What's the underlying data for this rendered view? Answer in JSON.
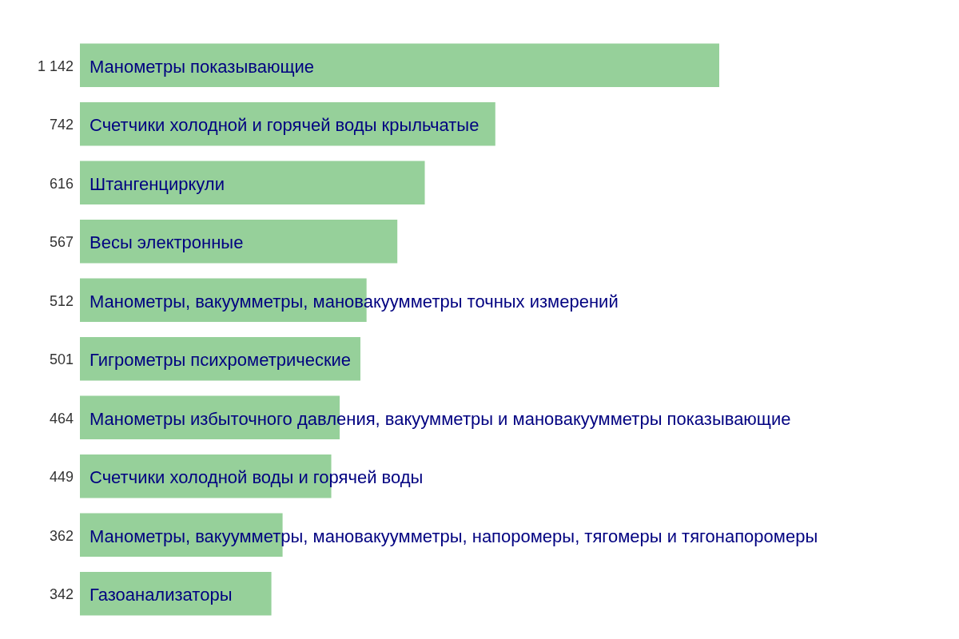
{
  "chart_data": {
    "type": "bar",
    "orientation": "horizontal",
    "color": "#96d09a",
    "categories": [
      "Манометры показывающие",
      "Счетчики холодной и горячей воды крыльчатые",
      "Штангенциркули",
      "Весы электронные",
      "Манометры, вакуумметры, мановакуумметры точных измерений",
      "Гигрометры психрометрические",
      "Манометры избыточного давления, вакуумметры и мановакуумметры показывающие",
      "Счетчики холодной воды и горячей воды",
      "Манометры, вакуумметры, мановакуумметры, напоромеры, тягомеры и тягонапоромеры",
      "Газоанализаторы"
    ],
    "values": [
      1142,
      742,
      616,
      567,
      512,
      501,
      464,
      449,
      362,
      342
    ],
    "value_labels": [
      "1 142",
      "742",
      "616",
      "567",
      "512",
      "501",
      "464",
      "449",
      "362",
      "342"
    ]
  }
}
